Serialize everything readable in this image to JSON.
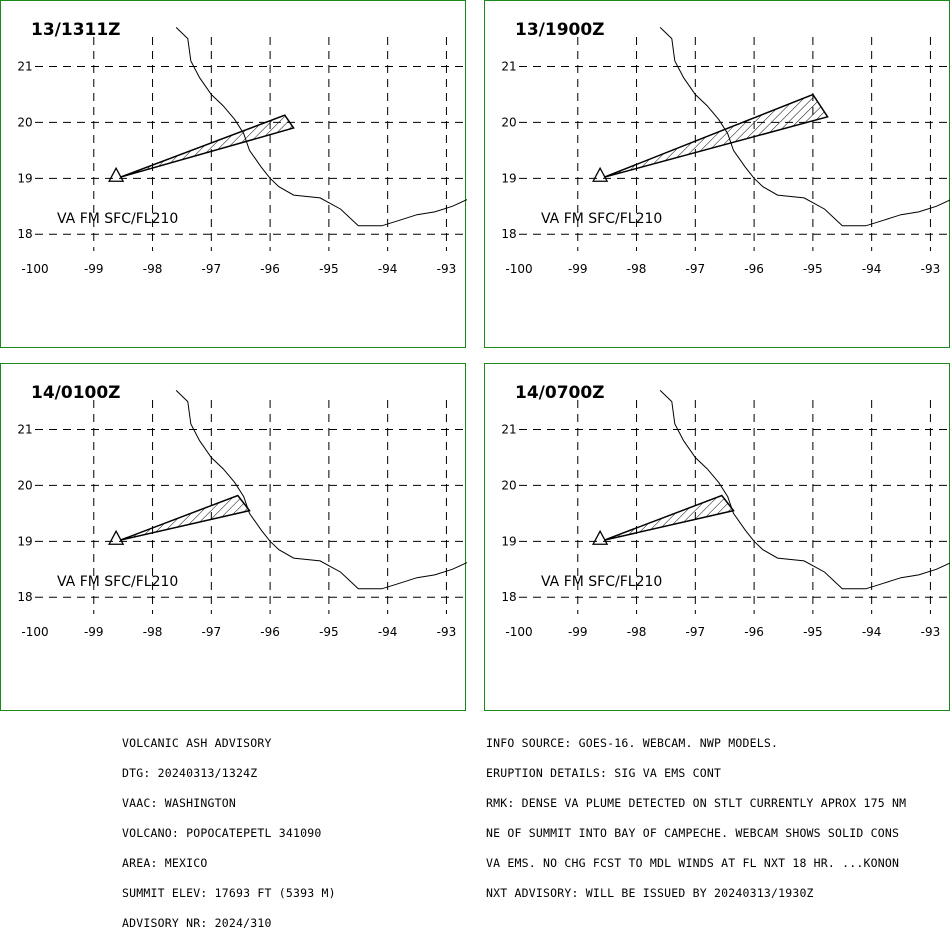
{
  "panels": [
    {
      "id": "p1",
      "time": "13/1311Z",
      "layer": "VA FM SFC/FL210",
      "plume": [
        [
          -98.55,
          19.02
        ],
        [
          -95.75,
          20.13
        ],
        [
          -95.6,
          19.9
        ],
        [
          -98.55,
          19.02
        ]
      ]
    },
    {
      "id": "p2",
      "time": "13/1900Z",
      "layer": "VA FM SFC/FL210",
      "plume": [
        [
          -98.55,
          19.02
        ],
        [
          -95.0,
          20.5
        ],
        [
          -94.75,
          20.1
        ],
        [
          -98.55,
          19.02
        ]
      ]
    },
    {
      "id": "p3",
      "time": "14/0100Z",
      "layer": "VA FM SFC/FL210",
      "plume": [
        [
          -98.55,
          19.02
        ],
        [
          -96.55,
          19.82
        ],
        [
          -96.35,
          19.55
        ],
        [
          -98.55,
          19.02
        ]
      ]
    },
    {
      "id": "p4",
      "time": "14/0700Z",
      "layer": "VA FM SFC/FL210",
      "plume": [
        [
          -98.55,
          19.02
        ],
        [
          -96.55,
          19.82
        ],
        [
          -96.35,
          19.55
        ],
        [
          -98.55,
          19.02
        ]
      ]
    }
  ],
  "axes": {
    "x_ticks": [
      "-100",
      "-99",
      "-98",
      "-97",
      "-96",
      "-95",
      "-94",
      "-93"
    ],
    "y_ticks": [
      "18",
      "19",
      "20",
      "21"
    ],
    "lon_range": [
      -100,
      -92.65
    ],
    "lat_range": [
      17.7,
      21.6
    ]
  },
  "volcano": {
    "lon": -98.62,
    "lat": 19.02,
    "icon": "volcano-triangle-icon"
  },
  "coastline": [
    [
      -97.6,
      21.7
    ],
    [
      -97.4,
      21.5
    ],
    [
      -97.35,
      21.1
    ],
    [
      -97.2,
      20.8
    ],
    [
      -97.0,
      20.5
    ],
    [
      -96.8,
      20.3
    ],
    [
      -96.6,
      20.05
    ],
    [
      -96.45,
      19.8
    ],
    [
      -96.35,
      19.5
    ],
    [
      -96.15,
      19.2
    ],
    [
      -96.0,
      19.0
    ],
    [
      -95.85,
      18.85
    ],
    [
      -95.6,
      18.7
    ],
    [
      -95.15,
      18.65
    ],
    [
      -94.8,
      18.45
    ],
    [
      -94.5,
      18.15
    ],
    [
      -94.1,
      18.15
    ],
    [
      -93.8,
      18.25
    ],
    [
      -93.5,
      18.35
    ],
    [
      -93.2,
      18.4
    ],
    [
      -92.9,
      18.5
    ],
    [
      -92.65,
      18.62
    ]
  ],
  "colors": {
    "panel_border": "#1a8a1a",
    "ink": "#000000"
  },
  "advisory_left": [
    "VOLCANIC ASH ADVISORY",
    "DTG: 20240313/1324Z",
    "VAAC: WASHINGTON",
    "VOLCANO: POPOCATEPETL 341090",
    "AREA: MEXICO",
    "SUMMIT ELEV: 17693 FT (5393 M)",
    "ADVISORY NR: 2024/310"
  ],
  "advisory_right": [
    "INFO SOURCE: GOES-16. WEBCAM. NWP MODELS.",
    "ERUPTION DETAILS: SIG VA EMS CONT",
    "RMK: DENSE VA PLUME DETECTED ON STLT CURRENTLY APROX 175 NM",
    "NE OF SUMMIT INTO BAY OF CAMPECHE. WEBCAM SHOWS SOLID CONS",
    "VA EMS. NO CHG FCST TO MDL WINDS AT FL NXT 18 HR. ...KONON",
    "NXT ADVISORY: WILL BE ISSUED BY 20240313/1930Z"
  ]
}
